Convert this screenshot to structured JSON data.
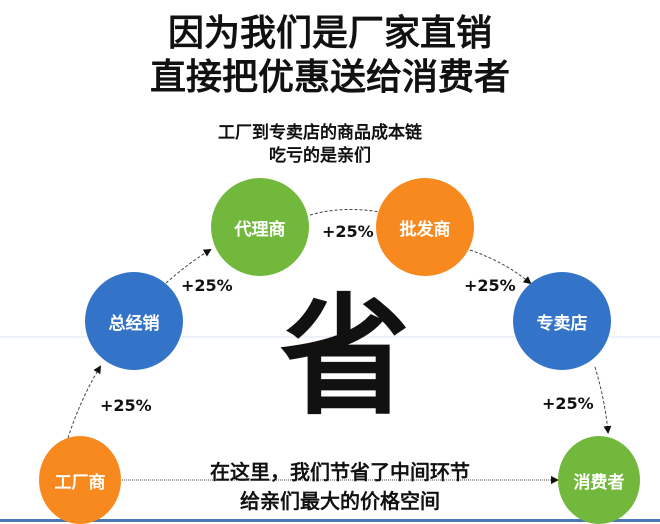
{
  "headline": {
    "line1": "因为我们是厂家直销",
    "line2": "直接把优惠送给消费者"
  },
  "subtitle": {
    "line1": "工厂到专卖店的商品成本链",
    "line2": "吃亏的是亲们"
  },
  "nodes": [
    {
      "label": "工厂商",
      "color": "#f7891f"
    },
    {
      "label": "总经销",
      "color": "#3374c8"
    },
    {
      "label": "代理商",
      "color": "#72b83c"
    },
    {
      "label": "批发商",
      "color": "#f7891f"
    },
    {
      "label": "专卖店",
      "color": "#3374c8"
    },
    {
      "label": "消费者",
      "color": "#72b83c"
    }
  ],
  "markups": [
    "+25%",
    "+25%",
    "+25%",
    "+25%",
    "+25%"
  ],
  "center_char": "省",
  "bottom_text": {
    "line1": "在这里，我们节省了中间环节",
    "line2": "给亲们最大的价格空间"
  }
}
